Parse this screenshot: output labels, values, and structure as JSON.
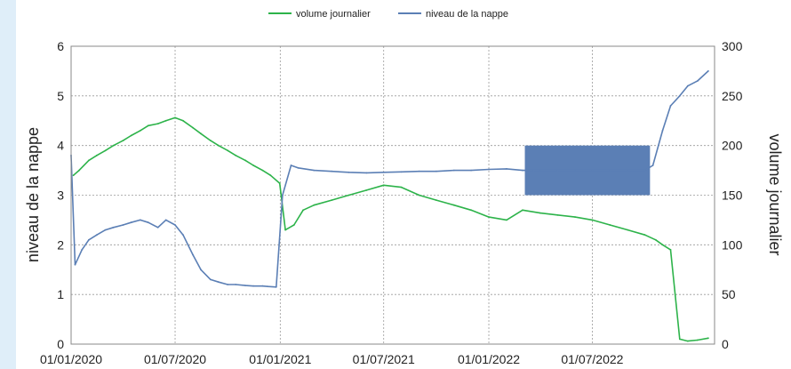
{
  "chart_data": {
    "type": "line",
    "legend": {
      "position": "top-center",
      "items": [
        {
          "label": "volume journalier",
          "color": "#2db34a"
        },
        {
          "label": "niveau de la nappe",
          "color": "#5b7fb5"
        }
      ]
    },
    "y_left": {
      "label": "niveau de la nappe",
      "range": [
        0,
        6
      ],
      "ticks": [
        0,
        1,
        2,
        3,
        4,
        5,
        6
      ]
    },
    "y_right": {
      "label": "volume journalier",
      "range": [
        0,
        300
      ],
      "ticks": [
        0,
        50,
        100,
        150,
        200,
        250,
        300
      ]
    },
    "x": {
      "range": [
        "2020-01-01",
        "2023-01-31"
      ],
      "ticks": [
        "01/01/2020",
        "01/07/2020",
        "01/01/2021",
        "01/07/2021",
        "01/01/2022",
        "01/07/2022"
      ],
      "tick_dates": [
        "2020-01-01",
        "2020-07-01",
        "2021-01-01",
        "2021-07-01",
        "2022-01-01",
        "2022-07-01"
      ]
    },
    "grid": true,
    "series": [
      {
        "name": "niveau de la nappe",
        "axis": "left",
        "color": "#5b7fb5",
        "x": [
          "2020-01-01",
          "2020-01-08",
          "2020-01-20",
          "2020-02-01",
          "2020-02-15",
          "2020-03-01",
          "2020-03-15",
          "2020-04-01",
          "2020-04-15",
          "2020-05-01",
          "2020-05-15",
          "2020-06-01",
          "2020-06-15",
          "2020-07-01",
          "2020-07-15",
          "2020-08-01",
          "2020-08-15",
          "2020-09-01",
          "2020-09-15",
          "2020-10-01",
          "2020-10-15",
          "2020-11-01",
          "2020-11-15",
          "2020-12-01",
          "2020-12-10",
          "2020-12-25",
          "2021-01-05",
          "2021-01-20",
          "2021-02-01",
          "2021-03-01",
          "2021-04-01",
          "2021-05-01",
          "2021-06-01",
          "2021-07-01",
          "2021-08-01",
          "2021-09-01",
          "2021-10-01",
          "2021-11-01",
          "2021-12-01",
          "2022-01-01",
          "2022-02-01",
          "2022-03-01",
          "2022-03-20",
          "2022-04-01",
          "2022-05-01",
          "2022-06-01",
          "2022-07-01",
          "2022-08-01",
          "2022-09-01",
          "2022-10-01",
          "2022-10-15",
          "2022-11-01",
          "2022-11-15",
          "2022-12-01",
          "2022-12-15",
          "2023-01-01",
          "2023-01-20"
        ],
        "values": [
          3.8,
          1.6,
          1.9,
          2.1,
          2.2,
          2.3,
          2.35,
          2.4,
          2.45,
          2.5,
          2.45,
          2.35,
          2.5,
          2.4,
          2.2,
          1.8,
          1.5,
          1.3,
          1.25,
          1.2,
          1.2,
          1.18,
          1.17,
          1.17,
          1.16,
          1.15,
          3.0,
          3.6,
          3.55,
          3.5,
          3.48,
          3.46,
          3.45,
          3.46,
          3.47,
          3.48,
          3.48,
          3.5,
          3.5,
          3.52,
          3.53,
          3.5,
          3.5,
          3.5,
          3.5,
          3.5,
          3.5,
          3.5,
          3.5,
          3.5,
          3.6,
          4.3,
          4.8,
          5.0,
          5.2,
          5.3,
          5.5
        ]
      },
      {
        "name": "volume journalier",
        "axis": "right",
        "color": "#2db34a",
        "x": [
          "2020-01-05",
          "2020-01-15",
          "2020-02-01",
          "2020-02-15",
          "2020-03-01",
          "2020-03-15",
          "2020-04-01",
          "2020-04-15",
          "2020-05-01",
          "2020-05-15",
          "2020-06-01",
          "2020-06-15",
          "2020-07-01",
          "2020-07-15",
          "2020-08-01",
          "2020-08-15",
          "2020-09-01",
          "2020-09-15",
          "2020-10-01",
          "2020-10-15",
          "2020-11-01",
          "2020-11-15",
          "2020-12-01",
          "2020-12-15",
          "2020-12-31",
          "2021-01-10",
          "2021-01-25",
          "2021-02-10",
          "2021-03-01",
          "2021-04-01",
          "2021-05-01",
          "2021-06-01",
          "2021-07-01",
          "2021-08-01",
          "2021-09-01",
          "2021-10-01",
          "2021-11-01",
          "2021-12-01",
          "2022-01-01",
          "2022-02-01",
          "2022-03-01",
          "2022-04-01",
          "2022-05-01",
          "2022-06-01",
          "2022-07-01",
          "2022-08-01",
          "2022-09-01",
          "2022-10-01",
          "2022-10-20",
          "2022-11-01",
          "2022-11-15",
          "2022-12-01",
          "2022-12-15",
          "2023-01-01",
          "2023-01-20"
        ],
        "values": [
          170,
          175,
          185,
          190,
          195,
          200,
          205,
          210,
          215,
          220,
          222,
          225,
          228,
          225,
          218,
          212,
          205,
          200,
          195,
          190,
          185,
          180,
          175,
          170,
          162,
          115,
          120,
          135,
          140,
          145,
          150,
          155,
          160,
          158,
          150,
          145,
          140,
          135,
          128,
          125,
          135,
          132,
          130,
          128,
          125,
          120,
          115,
          110,
          105,
          100,
          95,
          5,
          3,
          4,
          6
        ]
      }
    ],
    "box_overlay": {
      "series": "niveau de la nappe",
      "x_start": "2022-03-05",
      "x_end": "2022-10-10",
      "y_low": 3.0,
      "y_high": 4.0,
      "color": "#5b7fb5"
    }
  }
}
